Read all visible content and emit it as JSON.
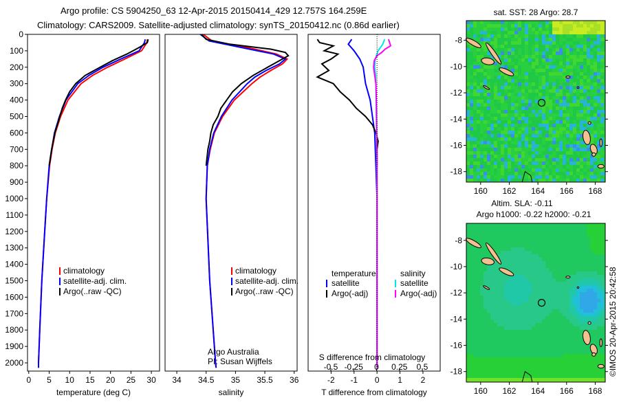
{
  "header": {
    "line1": "Argo profile: CS 5904250_63 12-Apr-2015 20150414_429 12.757S 164.259E",
    "line2": "Climatology: CARS2009. Satellite-adjusted climatology: synTS_20150412.nc (0.86d earlier)"
  },
  "footer_stamp": "©IMOS 20-Apr-2015 20:42:58",
  "colors": {
    "climatology": "#ff0000",
    "satellite": "#0000ff",
    "argo": "#000000",
    "s_satellite": "#00e5ee",
    "s_argo": "#ff00ff",
    "land": "#f5c08f"
  },
  "chart_data": [
    {
      "id": "temperature",
      "type": "line",
      "xlabel": "temperature (deg C)",
      "ylabel": "",
      "xlim": [
        -0.3,
        32
      ],
      "ylim": [
        2050,
        0
      ],
      "xticks": [
        0,
        5,
        10,
        15,
        20,
        25,
        30
      ],
      "yticks": [
        0,
        100,
        200,
        300,
        400,
        500,
        600,
        700,
        800,
        900,
        1000,
        1100,
        1200,
        1300,
        1400,
        1500,
        1600,
        1700,
        1800,
        1900,
        2000
      ],
      "legend": [
        "climatology",
        "satellite-adj. clim.",
        "Argo(..raw -QC)"
      ],
      "series": [
        {
          "name": "climatology",
          "color": "#ff0000",
          "depth": [
            30,
            50,
            100,
            150,
            200,
            250,
            300,
            400,
            500,
            600,
            700,
            800,
            1000,
            1200,
            1500,
            1800,
            2000,
            2030
          ],
          "values": [
            29,
            28.9,
            27.6,
            23.5,
            19.3,
            15.6,
            12.8,
            9.6,
            7.8,
            6.5,
            5.7,
            5.1,
            4.4,
            3.9,
            3.2,
            2.7,
            2.4,
            2.4
          ]
        },
        {
          "name": "satellite-adj. clim.",
          "color": "#0000ff",
          "depth": [
            30,
            50,
            100,
            150,
            200,
            250,
            300,
            400,
            500,
            600,
            700,
            800,
            1000,
            1200,
            1500,
            1800,
            2000,
            2030
          ],
          "values": [
            28.5,
            28.3,
            27,
            22.5,
            18.2,
            14.7,
            12,
            9.1,
            7.5,
            6.3,
            5.6,
            5.0,
            4.4,
            3.9,
            3.2,
            2.7,
            2.4,
            2.4
          ]
        },
        {
          "name": "Argo(..raw -QC)",
          "color": "#000000",
          "depth": [
            30,
            50,
            80,
            120,
            160,
            200,
            250,
            300,
            350,
            400,
            450,
            500,
            600,
            700,
            800
          ],
          "values": [
            29.2,
            29.0,
            27,
            24,
            20.5,
            17.5,
            13.8,
            11.5,
            10.0,
            9.0,
            8.2,
            7.6,
            6.4,
            5.6,
            5.0
          ]
        }
      ]
    },
    {
      "id": "salinity",
      "type": "line",
      "xlabel": "salinity",
      "xlim": [
        33.8,
        36.05
      ],
      "ylim": [
        2050,
        0
      ],
      "xticks": [
        34,
        34.5,
        35,
        35.5,
        36
      ],
      "yticks": [
        0,
        100,
        200,
        300,
        400,
        500,
        600,
        700,
        800,
        900,
        1000,
        1100,
        1200,
        1300,
        1400,
        1500,
        1600,
        1700,
        1800,
        1900,
        2000
      ],
      "legend": [
        "climatology",
        "satellite-adj. clim.",
        "Argo(..raw -QC)"
      ],
      "annotation": [
        "Argo Australia",
        "PI: Susan Wijffels"
      ],
      "series": [
        {
          "name": "climatology",
          "color": "#ff0000",
          "depth": [
            0,
            40,
            80,
            120,
            150,
            180,
            220,
            260,
            300,
            400,
            500,
            600,
            700,
            800,
            1000,
            1500,
            2000,
            2030
          ],
          "values": [
            34.45,
            34.6,
            35.2,
            35.7,
            35.88,
            35.8,
            35.6,
            35.42,
            35.28,
            34.98,
            34.78,
            34.64,
            34.57,
            34.52,
            34.5,
            34.56,
            34.66,
            34.67
          ]
        },
        {
          "name": "satellite-adj. clim.",
          "color": "#0000ff",
          "depth": [
            0,
            40,
            80,
            120,
            150,
            180,
            220,
            260,
            300,
            400,
            500,
            600,
            700,
            800,
            1000,
            1500,
            2000,
            2030
          ],
          "values": [
            34.4,
            34.55,
            35.1,
            35.65,
            35.85,
            35.75,
            35.52,
            35.33,
            35.2,
            34.94,
            34.76,
            34.63,
            34.56,
            34.52,
            34.5,
            34.56,
            34.66,
            34.67
          ]
        },
        {
          "name": "Argo(..raw -QC)",
          "color": "#000000",
          "depth": [
            0,
            30,
            60,
            90,
            110,
            130,
            160,
            200,
            250,
            300,
            350,
            400,
            450,
            500,
            550,
            600,
            650,
            700,
            800
          ],
          "values": [
            34.42,
            34.5,
            34.9,
            35.6,
            35.85,
            35.9,
            35.75,
            35.55,
            35.3,
            35.1,
            34.95,
            34.85,
            34.75,
            34.7,
            34.62,
            34.58,
            34.56,
            34.53,
            34.5
          ]
        }
      ]
    },
    {
      "id": "difference",
      "type": "line",
      "xlabel": "T difference from climatology",
      "toplabel": "S difference from climatology",
      "xlim": [
        -3,
        2.75
      ],
      "ylim": [
        2050,
        0
      ],
      "xticks": [
        -2,
        -1,
        0,
        1,
        2
      ],
      "sticks": [
        -0.5,
        -0.25,
        0,
        0.25,
        0.5
      ],
      "stick_labels": [
        "-0.5",
        "-0.25",
        "0",
        "0.25",
        "0.5"
      ],
      "legend_t": {
        "title": "temperature",
        "items": [
          "satellite",
          "Argo(-adj)"
        ]
      },
      "legend_s": {
        "title": "salinity",
        "items": [
          "satellite",
          "Argo(-adj)"
        ]
      },
      "series": [
        {
          "name": "T satellite",
          "color": "#0000ff",
          "depth": [
            30,
            60,
            100,
            150,
            200,
            300,
            400,
            500,
            600,
            800,
            1000,
            2030
          ],
          "values": [
            -1.1,
            -1.25,
            -1.0,
            -0.75,
            -0.6,
            -0.5,
            -0.3,
            -0.2,
            -0.1,
            -0.05,
            0,
            0
          ]
        },
        {
          "name": "T Argo(-adj)",
          "color": "#000000",
          "depth": [
            30,
            50,
            70,
            100,
            120,
            150,
            180,
            220,
            260,
            300,
            350,
            400,
            450,
            500,
            550,
            600,
            650,
            700,
            800
          ],
          "values": [
            -2.6,
            -2.5,
            -1.9,
            -2.3,
            -1.7,
            -2.0,
            -2.4,
            -2.1,
            -2.6,
            -1.9,
            -1.6,
            -1.2,
            -0.9,
            -0.5,
            -0.2,
            -0.05,
            0.05,
            0,
            0
          ]
        },
        {
          "name": "S satellite",
          "color": "#00e5ee",
          "depth": [
            30,
            60,
            100,
            150,
            200,
            250,
            300,
            400,
            500,
            600,
            800,
            1000,
            2030
          ],
          "values": [
            0.33,
            0.25,
            0.05,
            -0.08,
            -0.1,
            -0.06,
            -0.05,
            -0.04,
            -0.03,
            -0.02,
            -0.01,
            0,
            0
          ]
        },
        {
          "name": "S Argo(-adj)",
          "color": "#ff00ff",
          "depth": [
            30,
            50,
            70,
            90,
            110,
            130,
            160,
            200,
            250,
            300,
            400,
            500,
            600,
            800,
            1000,
            2030
          ],
          "values": [
            0.5,
            0.55,
            0.59,
            0.35,
            0.2,
            0.0,
            -0.12,
            -0.15,
            -0.1,
            -0.05,
            -0.03,
            -0.02,
            -0.01,
            0,
            0,
            0
          ]
        }
      ]
    },
    {
      "id": "sst_map",
      "type": "heatmap",
      "title": "sat. SST: 28 Argo: 28.7",
      "xlim": [
        159,
        168.7
      ],
      "ylim": [
        -18.8,
        -6.5
      ],
      "xticks": [
        160,
        162,
        164,
        166,
        168
      ],
      "yticks": [
        -8,
        -10,
        -12,
        -14,
        -16,
        -18
      ],
      "marker": {
        "lon": 164.259,
        "lat": -12.757
      }
    },
    {
      "id": "sla_map",
      "type": "heatmap",
      "title": "Altim. SLA: -0.11",
      "subtitle": "Argo h1000: -0.22 h2000: -0.21",
      "xlim": [
        159,
        168.7
      ],
      "ylim": [
        -18.8,
        -6.7
      ],
      "xticks": [
        160,
        162,
        164,
        166,
        168
      ],
      "yticks": [
        -8,
        -10,
        -12,
        -14,
        -16,
        -18
      ],
      "marker": {
        "lon": 164.259,
        "lat": -12.757
      }
    }
  ]
}
